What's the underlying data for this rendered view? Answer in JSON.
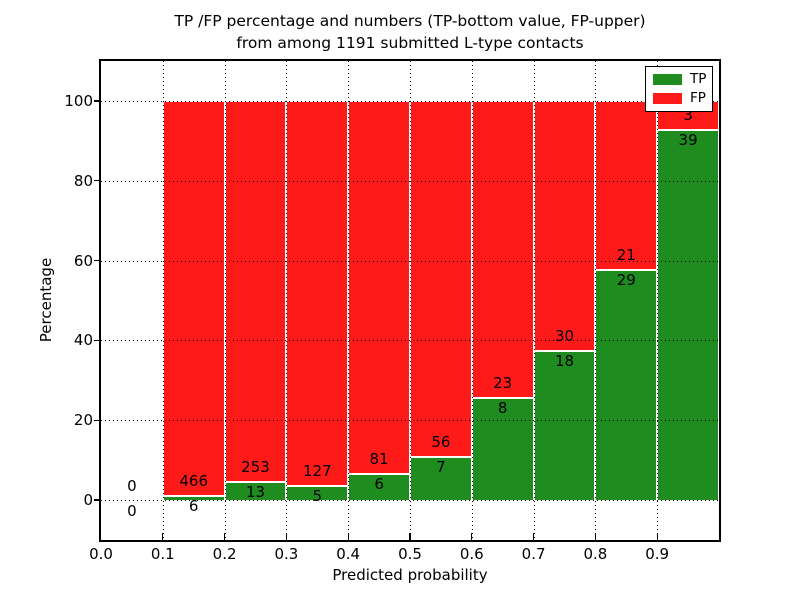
{
  "title": {
    "line1": "TP /FP percentage and numbers (TP-bottom value, FP-upper)",
    "line2": "from among 1191 submitted L-type contacts"
  },
  "axes": {
    "xlabel": "Predicted probability",
    "ylabel": "Percentage",
    "x_tick_labels": [
      "0.0",
      "0.1",
      "0.2",
      "0.3",
      "0.4",
      "0.5",
      "0.6",
      "0.7",
      "0.8",
      "0.9"
    ],
    "y_tick_labels": [
      "0",
      "20",
      "40",
      "60",
      "80",
      "100"
    ]
  },
  "legend": {
    "items": [
      {
        "label": "TP",
        "color": "#1e8c1e"
      },
      {
        "label": "FP",
        "color": "#ff1a1a"
      }
    ]
  },
  "chart_data": {
    "type": "bar",
    "stacked": true,
    "normalized_to_percent": true,
    "title": "TP /FP percentage and numbers (TP-bottom value, FP-upper) from among 1191 submitted L-type contacts",
    "xlabel": "Predicted probability",
    "ylabel": "Percentage",
    "xlim": [
      0.0,
      1.0
    ],
    "ylim": [
      -10,
      110
    ],
    "bin_width": 0.1,
    "categories": [
      0.0,
      0.1,
      0.2,
      0.3,
      0.4,
      0.5,
      0.6,
      0.7,
      0.8,
      0.9
    ],
    "series": [
      {
        "name": "TP",
        "color": "#1e8c1e",
        "counts": [
          0,
          6,
          13,
          5,
          6,
          7,
          8,
          18,
          29,
          39
        ]
      },
      {
        "name": "FP",
        "color": "#ff1a1a",
        "counts": [
          0,
          466,
          253,
          127,
          81,
          56,
          23,
          30,
          21,
          3
        ]
      }
    ],
    "total_contacts": 1191,
    "x_ticks": [
      0.0,
      0.1,
      0.2,
      0.3,
      0.4,
      0.5,
      0.6,
      0.7,
      0.8,
      0.9
    ],
    "y_ticks": [
      0,
      20,
      40,
      60,
      80,
      100
    ],
    "grid": true,
    "grid_style": "dotted",
    "legend_position": "upper right",
    "bar_edge_color": "#ffffff",
    "background_color": "#ffffff"
  }
}
